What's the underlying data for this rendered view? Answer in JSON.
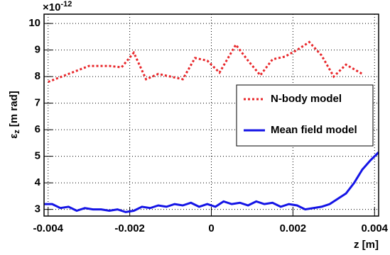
{
  "chart_data": {
    "type": "line",
    "y_multiplier": "×10",
    "y_multiplier_exp": "-12",
    "ylabel": "ε",
    "ylabel_sub": "z",
    "ylabel_unit": "[m rad]",
    "xlabel": "z [m]",
    "xlim": [
      -0.0041,
      0.0041
    ],
    "xticks": [
      -0.004,
      -0.002,
      0,
      0.002,
      0.004
    ],
    "ylim": [
      2.75,
      10.35
    ],
    "yticks": [
      3,
      4,
      5,
      6,
      7,
      8,
      9,
      10
    ],
    "grid": true,
    "legend_position": "right",
    "series": [
      {
        "name": "N-body model",
        "color": "#e8262a",
        "style": "dotted",
        "x": [
          -0.004,
          -0.0035,
          -0.003,
          -0.0025,
          -0.0022,
          -0.0019,
          -0.0016,
          -0.0013,
          -0.001,
          -0.0007,
          -0.0004,
          -0.0001,
          0.0002,
          0.0006,
          0.0009,
          0.0012,
          0.0015,
          0.0018,
          0.0021,
          0.0024,
          0.0027,
          0.003,
          0.0033,
          0.0037
        ],
        "values": [
          7.8,
          8.1,
          8.4,
          8.4,
          8.35,
          8.9,
          7.9,
          8.1,
          8.0,
          7.9,
          8.7,
          8.6,
          8.15,
          9.2,
          8.6,
          8.05,
          8.65,
          8.75,
          9.0,
          9.3,
          8.8,
          8.0,
          8.45,
          8.1
        ]
      },
      {
        "name": "Mean field model",
        "color": "#1414e6",
        "style": "solid",
        "x": [
          -0.0041,
          -0.0039,
          -0.0037,
          -0.0035,
          -0.0033,
          -0.0031,
          -0.0029,
          -0.0027,
          -0.0025,
          -0.0023,
          -0.0021,
          -0.0019,
          -0.0017,
          -0.0015,
          -0.0013,
          -0.0011,
          -0.0009,
          -0.0007,
          -0.0005,
          -0.0003,
          -0.0001,
          0.0001,
          0.0003,
          0.0005,
          0.0007,
          0.0009,
          0.0011,
          0.0013,
          0.0015,
          0.0017,
          0.0019,
          0.0021,
          0.0023,
          0.0025,
          0.0027,
          0.0029,
          0.0031,
          0.0033,
          0.0035,
          0.0037,
          0.0039,
          0.0041
        ],
        "values": [
          3.2,
          3.2,
          3.05,
          3.1,
          2.95,
          3.05,
          3.0,
          3.0,
          2.95,
          3.0,
          2.9,
          2.95,
          3.1,
          3.05,
          3.15,
          3.1,
          3.2,
          3.15,
          3.25,
          3.1,
          3.2,
          3.1,
          3.3,
          3.2,
          3.25,
          3.15,
          3.3,
          3.2,
          3.25,
          3.1,
          3.2,
          3.15,
          3.0,
          3.05,
          3.1,
          3.2,
          3.4,
          3.6,
          4.0,
          4.5,
          4.85,
          5.15
        ]
      }
    ]
  }
}
